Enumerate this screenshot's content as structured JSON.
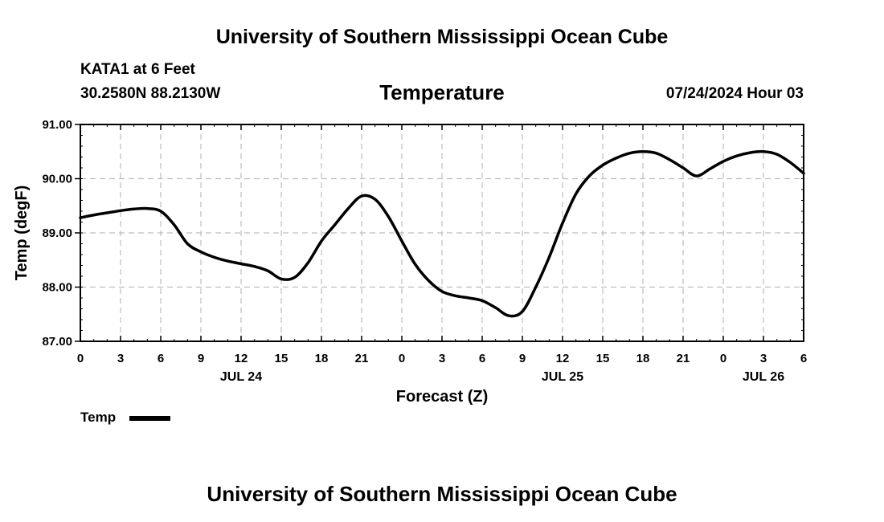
{
  "header": {
    "title": "University of Southern Mississippi Ocean Cube",
    "station": "KATA1 at 6 Feet",
    "coords": "30.2580N  88.2130W",
    "variable": "Temperature",
    "date": "07/24/2024 Hour 03"
  },
  "footer": {
    "title": "University of Southern Mississippi Ocean Cube"
  },
  "chart_data": {
    "type": "line",
    "title": "Temperature",
    "xlabel": "Forecast (Z)",
    "ylabel": "Temp (degF)",
    "ylim": [
      87,
      91
    ],
    "xlim": [
      0,
      54
    ],
    "grid": true,
    "y_ticks": [
      "87.00",
      "88.00",
      "89.00",
      "90.00",
      "91.00"
    ],
    "y_tick_values": [
      87,
      88,
      89,
      90,
      91
    ],
    "x_ticks": [
      "0",
      "3",
      "6",
      "9",
      "12",
      "15",
      "18",
      "21",
      "0",
      "3",
      "6",
      "9",
      "12",
      "15",
      "18",
      "21",
      "0",
      "3",
      "6"
    ],
    "date_labels": [
      {
        "label": "JUL 24",
        "hour": 12
      },
      {
        "label": "JUL 25",
        "hour": 36
      },
      {
        "label": "JUL 26",
        "hour": 51
      }
    ],
    "legend": [
      {
        "name": "Temp",
        "position": "bottom-left"
      }
    ],
    "series": [
      {
        "name": "Temp",
        "color": "#000000",
        "x": [
          0,
          1,
          2,
          3,
          4,
          5,
          6,
          7,
          8,
          9,
          10,
          11,
          12,
          13,
          14,
          15,
          16,
          17,
          18,
          19,
          20,
          21,
          22,
          23,
          24,
          25,
          26,
          27,
          28,
          29,
          30,
          31,
          32,
          33,
          34,
          35,
          36,
          37,
          38,
          39,
          40,
          41,
          42,
          43,
          44,
          45,
          46,
          47,
          48,
          49,
          50,
          51,
          52,
          53,
          54
        ],
        "values": [
          89.28,
          89.33,
          89.37,
          89.41,
          89.44,
          89.45,
          89.4,
          89.15,
          88.8,
          88.65,
          88.55,
          88.48,
          88.43,
          88.38,
          88.3,
          88.15,
          88.18,
          88.45,
          88.85,
          89.15,
          89.45,
          89.68,
          89.62,
          89.3,
          88.85,
          88.42,
          88.12,
          87.92,
          87.84,
          87.8,
          87.75,
          87.62,
          87.47,
          87.55,
          88.0,
          88.55,
          89.18,
          89.72,
          90.05,
          90.25,
          90.38,
          90.47,
          90.5,
          90.47,
          90.35,
          90.2,
          90.05,
          90.18,
          90.32,
          90.42,
          90.48,
          90.5,
          90.45,
          90.3,
          90.1
        ]
      }
    ]
  }
}
